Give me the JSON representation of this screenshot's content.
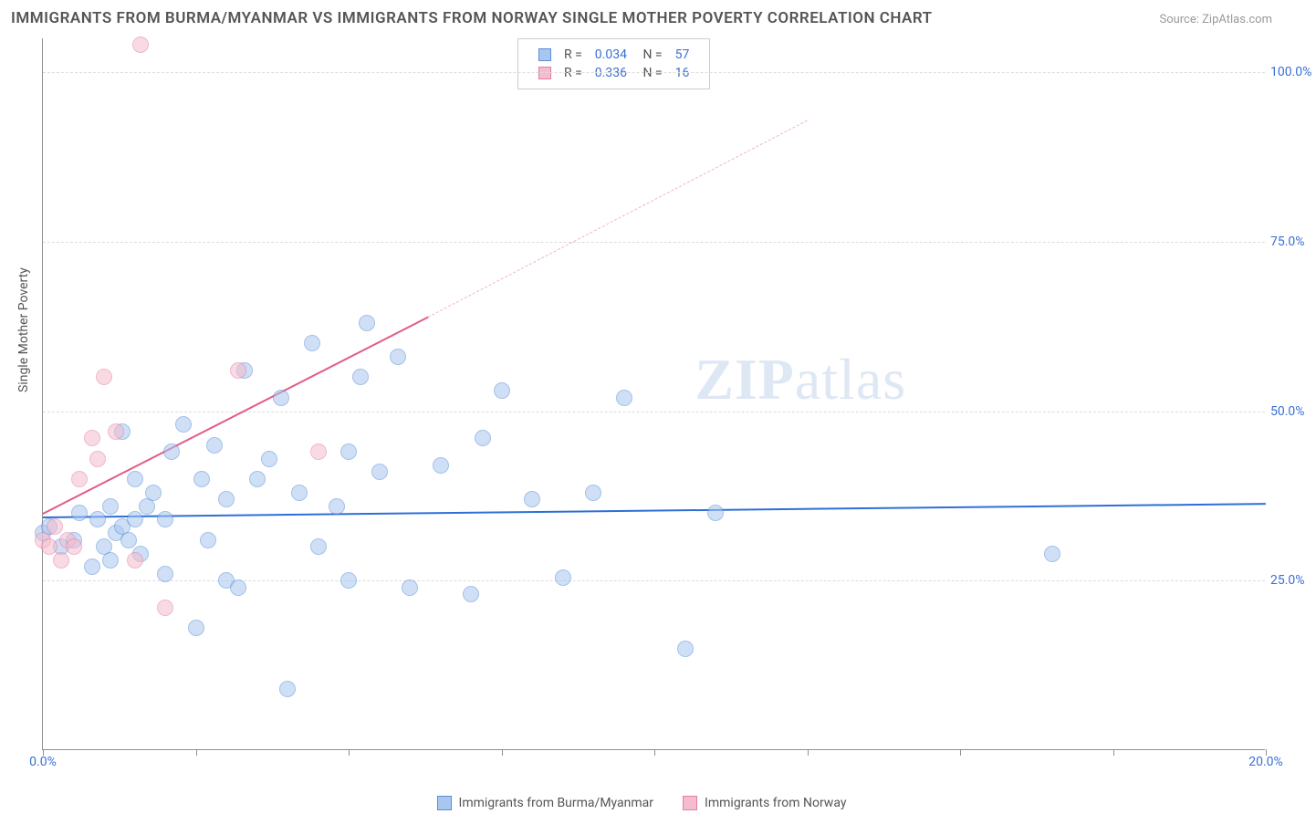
{
  "title": "IMMIGRANTS FROM BURMA/MYANMAR VS IMMIGRANTS FROM NORWAY SINGLE MOTHER POVERTY CORRELATION CHART",
  "source": "Source: ZipAtlas.com",
  "watermark_bold": "ZIP",
  "watermark_rest": "atlas",
  "ylabel": "Single Mother Poverty",
  "chart": {
    "type": "scatter",
    "xlim": [
      0,
      20
    ],
    "ylim": [
      0,
      105
    ],
    "x_ticks": [
      0,
      2.5,
      5,
      7.5,
      10,
      12.5,
      15,
      17.5,
      20
    ],
    "x_tick_labels": {
      "0": "0.0%",
      "20": "20.0%"
    },
    "y_ticks": [
      25,
      50,
      75,
      100
    ],
    "y_tick_labels": {
      "25": "25.0%",
      "50": "50.0%",
      "75": "75.0%",
      "100": "100.0%"
    },
    "background_color": "#ffffff",
    "grid_color": "#dcdcdc",
    "axis_color": "#909090",
    "tick_label_color": "#3b6fd6",
    "marker_radius": 9,
    "marker_opacity": 0.55,
    "series": [
      {
        "name": "Immigrants from Burma/Myanmar",
        "color_fill": "#a8c6f0",
        "color_stroke": "#5a8fd6",
        "r": 0.034,
        "n": 57,
        "trend": {
          "x1": 0,
          "y1": 34.5,
          "x2": 20,
          "y2": 36.5,
          "color": "#2e6fd6",
          "width": 2
        },
        "points": [
          {
            "x": 0.0,
            "y": 32
          },
          {
            "x": 0.1,
            "y": 33
          },
          {
            "x": 0.3,
            "y": 30
          },
          {
            "x": 0.5,
            "y": 31
          },
          {
            "x": 0.6,
            "y": 35
          },
          {
            "x": 0.8,
            "y": 27
          },
          {
            "x": 0.9,
            "y": 34
          },
          {
            "x": 1.0,
            "y": 30
          },
          {
            "x": 1.1,
            "y": 36
          },
          {
            "x": 1.2,
            "y": 32
          },
          {
            "x": 1.1,
            "y": 28
          },
          {
            "x": 1.3,
            "y": 33
          },
          {
            "x": 1.4,
            "y": 31
          },
          {
            "x": 1.5,
            "y": 34
          },
          {
            "x": 1.6,
            "y": 29
          },
          {
            "x": 1.5,
            "y": 40
          },
          {
            "x": 1.7,
            "y": 36
          },
          {
            "x": 1.8,
            "y": 38
          },
          {
            "x": 2.0,
            "y": 26
          },
          {
            "x": 2.0,
            "y": 34
          },
          {
            "x": 2.3,
            "y": 48
          },
          {
            "x": 2.5,
            "y": 18
          },
          {
            "x": 2.6,
            "y": 40
          },
          {
            "x": 2.7,
            "y": 31
          },
          {
            "x": 2.8,
            "y": 45
          },
          {
            "x": 3.0,
            "y": 25
          },
          {
            "x": 3.0,
            "y": 37
          },
          {
            "x": 3.2,
            "y": 24
          },
          {
            "x": 3.3,
            "y": 56
          },
          {
            "x": 3.5,
            "y": 40
          },
          {
            "x": 3.7,
            "y": 43
          },
          {
            "x": 3.9,
            "y": 52
          },
          {
            "x": 4.0,
            "y": 9
          },
          {
            "x": 4.2,
            "y": 38
          },
          {
            "x": 4.4,
            "y": 60
          },
          {
            "x": 4.5,
            "y": 30
          },
          {
            "x": 4.8,
            "y": 36
          },
          {
            "x": 5.0,
            "y": 25
          },
          {
            "x": 5.0,
            "y": 44
          },
          {
            "x": 5.2,
            "y": 55
          },
          {
            "x": 5.3,
            "y": 63
          },
          {
            "x": 5.5,
            "y": 41
          },
          {
            "x": 5.8,
            "y": 58
          },
          {
            "x": 6.0,
            "y": 24
          },
          {
            "x": 6.5,
            "y": 42
          },
          {
            "x": 7.0,
            "y": 23
          },
          {
            "x": 7.2,
            "y": 46
          },
          {
            "x": 7.5,
            "y": 53
          },
          {
            "x": 8.0,
            "y": 37
          },
          {
            "x": 8.5,
            "y": 25.5
          },
          {
            "x": 9.0,
            "y": 38
          },
          {
            "x": 9.5,
            "y": 52
          },
          {
            "x": 10.5,
            "y": 15
          },
          {
            "x": 11.0,
            "y": 35
          },
          {
            "x": 16.5,
            "y": 29
          },
          {
            "x": 1.3,
            "y": 47
          },
          {
            "x": 2.1,
            "y": 44
          }
        ]
      },
      {
        "name": "Immigrants from Norway",
        "color_fill": "#f5bccd",
        "color_stroke": "#e37fa3",
        "r": 0.336,
        "n": 16,
        "trend_solid": {
          "x1": 0,
          "y1": 35,
          "x2": 6.3,
          "y2": 64,
          "color": "#e35b87",
          "width": 2
        },
        "trend_dash": {
          "x1": 6.3,
          "y1": 64,
          "x2": 12.5,
          "y2": 93,
          "color": "#f0b4c6"
        },
        "points": [
          {
            "x": 0.0,
            "y": 31
          },
          {
            "x": 0.1,
            "y": 30
          },
          {
            "x": 0.2,
            "y": 33
          },
          {
            "x": 0.3,
            "y": 28
          },
          {
            "x": 0.4,
            "y": 31
          },
          {
            "x": 0.5,
            "y": 30
          },
          {
            "x": 0.6,
            "y": 40
          },
          {
            "x": 0.8,
            "y": 46
          },
          {
            "x": 0.9,
            "y": 43
          },
          {
            "x": 1.0,
            "y": 55
          },
          {
            "x": 1.2,
            "y": 47
          },
          {
            "x": 1.5,
            "y": 28
          },
          {
            "x": 1.6,
            "y": 104
          },
          {
            "x": 2.0,
            "y": 21
          },
          {
            "x": 3.2,
            "y": 56
          },
          {
            "x": 4.5,
            "y": 44
          }
        ]
      }
    ]
  },
  "legend_bottom": [
    {
      "label": "Immigrants from Burma/Myanmar",
      "fill": "#a8c6f0",
      "stroke": "#5a8fd6"
    },
    {
      "label": "Immigrants from Norway",
      "fill": "#f5bccd",
      "stroke": "#e37fa3"
    }
  ]
}
